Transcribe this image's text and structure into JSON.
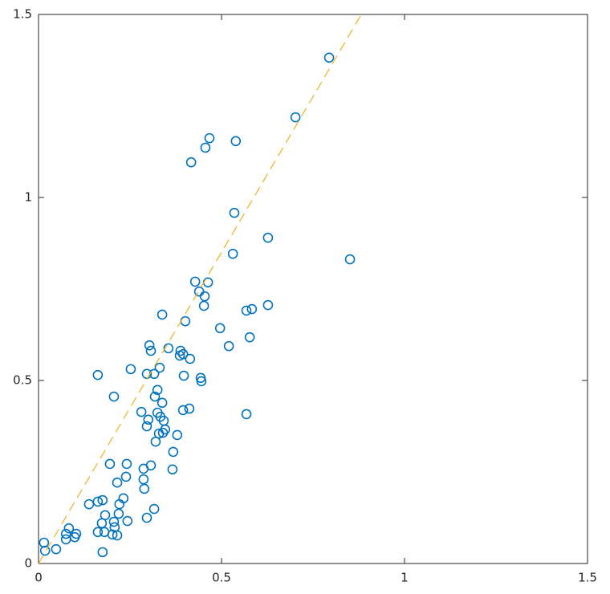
{
  "chart_data": {
    "type": "scatter",
    "xlim": [
      0,
      1.5
    ],
    "ylim": [
      0,
      1.5
    ],
    "xticks": [
      0,
      0.5,
      1,
      1.5
    ],
    "yticks": [
      0,
      0.5,
      1,
      1.5
    ],
    "box": true,
    "series": [
      {
        "type": "scatter",
        "marker": "circle",
        "color": "#0072BD",
        "x": [
          0.794,
          0.702,
          0.467,
          0.456,
          0.539,
          0.417,
          0.535,
          0.627,
          0.531,
          0.851,
          0.428,
          0.463,
          0.439,
          0.454,
          0.452,
          0.627,
          0.583,
          0.568,
          0.338,
          0.401,
          0.496,
          0.577,
          0.303,
          0.52,
          0.307,
          0.355,
          0.388,
          0.395,
          0.386,
          0.414,
          0.252,
          0.331,
          0.162,
          0.296,
          0.316,
          0.397,
          0.443,
          0.445,
          0.325,
          0.206,
          0.318,
          0.338,
          0.412,
          0.395,
          0.281,
          0.325,
          0.333,
          0.3,
          0.342,
          0.568,
          0.296,
          0.346,
          0.34,
          0.329,
          0.379,
          0.32,
          0.368,
          0.241,
          0.195,
          0.307,
          0.366,
          0.287,
          0.239,
          0.287,
          0.215,
          0.289,
          0.232,
          0.221,
          0.138,
          0.162,
          0.175,
          0.316,
          0.219,
          0.182,
          0.206,
          0.243,
          0.296,
          0.173,
          0.208,
          0.162,
          0.202,
          0.215,
          0.18,
          0.083,
          0.075,
          0.103,
          0.075,
          0.099,
          0.015,
          0.018,
          0.048,
          0.175
        ],
        "values": [
          1.382,
          1.219,
          1.162,
          1.136,
          1.154,
          1.096,
          0.958,
          0.89,
          0.846,
          0.831,
          0.77,
          0.768,
          0.743,
          0.73,
          0.704,
          0.706,
          0.695,
          0.691,
          0.68,
          0.662,
          0.643,
          0.618,
          0.596,
          0.594,
          0.581,
          0.588,
          0.581,
          0.572,
          0.568,
          0.559,
          0.531,
          0.535,
          0.515,
          0.518,
          0.518,
          0.513,
          0.507,
          0.498,
          0.474,
          0.456,
          0.456,
          0.439,
          0.423,
          0.419,
          0.414,
          0.412,
          0.401,
          0.393,
          0.39,
          0.408,
          0.375,
          0.366,
          0.357,
          0.355,
          0.351,
          0.333,
          0.305,
          0.272,
          0.272,
          0.268,
          0.257,
          0.259,
          0.237,
          0.23,
          0.221,
          0.204,
          0.178,
          0.162,
          0.162,
          0.169,
          0.173,
          0.149,
          0.136,
          0.132,
          0.114,
          0.116,
          0.125,
          0.11,
          0.099,
          0.086,
          0.079,
          0.077,
          0.086,
          0.096,
          0.081,
          0.081,
          0.066,
          0.072,
          0.057,
          0.035,
          0.039,
          0.031
        ]
      },
      {
        "type": "line",
        "dashed": true,
        "color": "#EDB120",
        "x": [
          0,
          0.882
        ],
        "values": [
          0,
          1.5
        ]
      }
    ]
  }
}
